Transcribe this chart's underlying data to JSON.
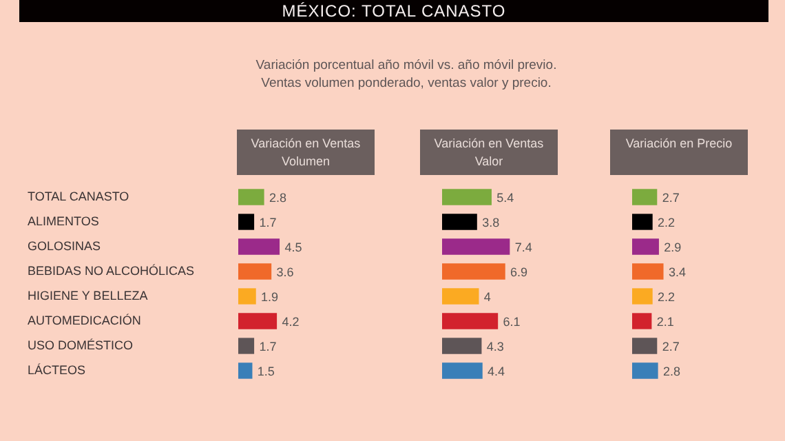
{
  "chart_data": [
    {
      "type": "bar",
      "orientation": "horizontal",
      "title": "Variación en Ventas Volumen",
      "annotations": [
        "MÉXICO: TOTAL CANASTO",
        "Variación porcentual año móvil vs. año móvil previo.",
        "Ventas volumen ponderado, ventas valor y precio."
      ],
      "categories": [
        "TOTAL CANASTO",
        "ALIMENTOS",
        "GOLOSINAS",
        "BEBIDAS NO ALCOHÓLICAS",
        "HIGIENE Y BELLEZA",
        "AUTOMEDICACIÓN",
        "USO DOMÉSTICO",
        "LÁCTEOS"
      ],
      "values": [
        2.8,
        1.7,
        4.5,
        3.6,
        1.9,
        4.2,
        1.7,
        1.5
      ],
      "colors": [
        "#7cab3e",
        "#000000",
        "#9b2a8a",
        "#f0692a",
        "#fbaa22",
        "#d2222d",
        "#5e5557",
        "#3a7fb8"
      ],
      "data_labels": true,
      "tick_labels": "y"
    },
    {
      "type": "bar",
      "orientation": "horizontal",
      "title": "Variación en Ventas Valor",
      "categories": [
        null,
        null,
        null,
        null,
        null,
        null,
        null,
        null
      ],
      "values": [
        5.4,
        3.8,
        7.4,
        6.9,
        4,
        6.1,
        4.3,
        4.4
      ],
      "colors": [
        "#7cab3e",
        "#000000",
        "#9b2a8a",
        "#f0692a",
        "#fbaa22",
        "#d2222d",
        "#5e5557",
        "#3a7fb8"
      ],
      "data_labels": true
    },
    {
      "type": "bar",
      "orientation": "horizontal",
      "title": "Variación en Precio",
      "categories": [
        null,
        null,
        null,
        null,
        null,
        null,
        null,
        null
      ],
      "values": [
        2.7,
        2.2,
        2.9,
        3.4,
        2.2,
        2.1,
        2.7,
        2.8
      ],
      "colors": [
        "#7cab3e",
        "#000000",
        "#9b2a8a",
        "#f0692a",
        "#fbaa22",
        "#d2222d",
        "#5e5557",
        "#3a7fb8"
      ],
      "data_labels": true
    }
  ]
}
